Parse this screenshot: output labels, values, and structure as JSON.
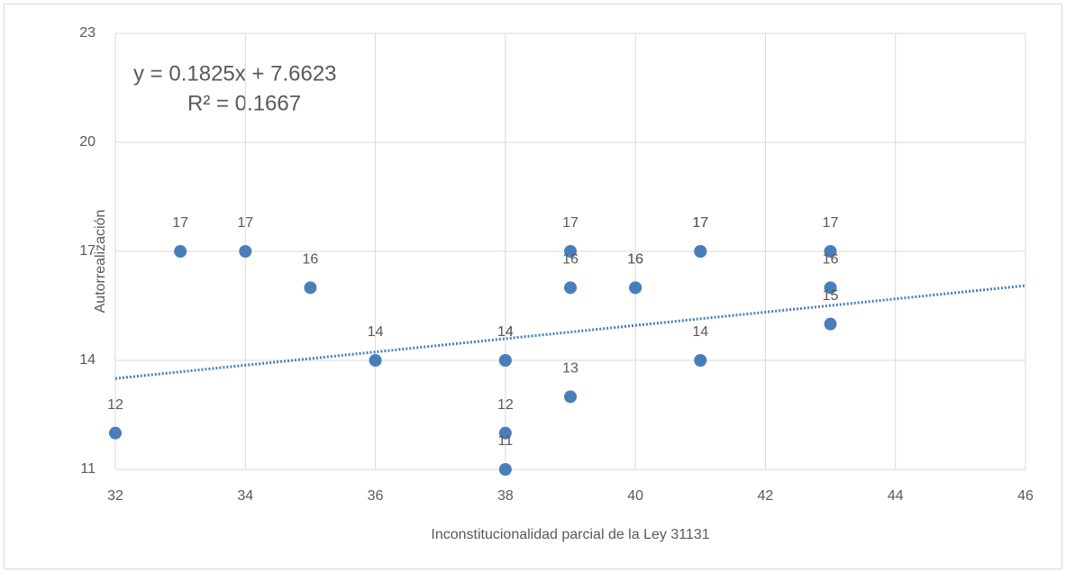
{
  "chart_data": {
    "type": "scatter",
    "x_label": "Inconstitucionalidad parcial de la Ley 31131",
    "y_label": "Autorrealización",
    "x": [
      32,
      33,
      34,
      35,
      36,
      38,
      38,
      38,
      38,
      39,
      39,
      39,
      40,
      40,
      41,
      41,
      41,
      43,
      43,
      43
    ],
    "series": [
      {
        "name": "Autorrealización",
        "color": "#4a7ebb",
        "values": [
          12,
          17,
          17,
          16,
          14,
          14,
          14,
          12,
          11,
          17,
          16,
          13,
          16,
          16,
          17,
          17,
          14,
          17,
          16,
          15
        ]
      }
    ],
    "xlim": [
      32,
      46
    ],
    "xticks": [
      32,
      34,
      36,
      38,
      40,
      42,
      44,
      46
    ],
    "ylim": [
      11,
      23
    ],
    "yticks": [
      11,
      14,
      17,
      20,
      23
    ],
    "grid": true,
    "trendline": {
      "equation": "y = 0.1825x + 7.6623",
      "r_squared": "R² = 0.1667",
      "slope": 0.1825,
      "intercept": 7.6623,
      "color": "#4a7ebb"
    }
  }
}
